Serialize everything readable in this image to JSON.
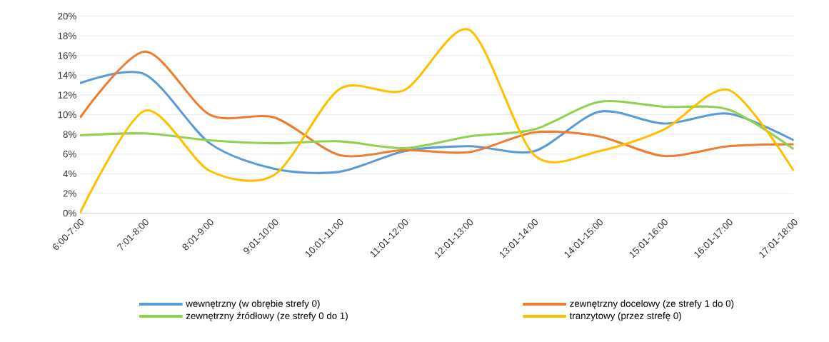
{
  "chart_data": {
    "type": "line",
    "categories": [
      "6:00-7:00",
      "7:01-8:00",
      "8:01-9:00",
      "9:01-10:00",
      "10:01-11:00",
      "11:01-12:00",
      "12:01-13:00",
      "13:01-14:00",
      "14:01-15:00",
      "15:01-16:00",
      "16:01-17:00",
      "17:01-18:00"
    ],
    "series": [
      {
        "name": "wewnętrzny (w obrębie strefy 0)",
        "color": "#5b9bd5",
        "values": [
          13.2,
          14.1,
          7.1,
          4.5,
          4.2,
          6.3,
          6.8,
          6.3,
          10.3,
          9.1,
          10.1,
          7.4
        ]
      },
      {
        "name": "zewnętrzny docelowy (ze strefy 1 do 0)",
        "color": "#ed7d31",
        "values": [
          9.7,
          16.4,
          10.0,
          9.7,
          5.9,
          6.4,
          6.2,
          8.2,
          7.8,
          5.8,
          6.8,
          7.0
        ]
      },
      {
        "name": "zewnętrzny źródłowy (ze strefy 0 do 1)",
        "color": "#92d050",
        "values": [
          7.9,
          8.1,
          7.4,
          7.1,
          7.3,
          6.6,
          7.8,
          8.5,
          11.3,
          10.8,
          10.5,
          6.5
        ]
      },
      {
        "name": "tranzytowy (przez strefę 0)",
        "color": "#ffc000",
        "values": [
          0,
          10.4,
          4.3,
          3.9,
          12.6,
          12.5,
          18.6,
          5.9,
          6.3,
          8.5,
          12.5,
          4.3
        ]
      }
    ],
    "ylim": [
      0,
      20
    ],
    "yticks": [
      {
        "value": 0,
        "label": "0%"
      },
      {
        "value": 2,
        "label": "2%"
      },
      {
        "value": 4,
        "label": "4%"
      },
      {
        "value": 6,
        "label": "6%"
      },
      {
        "value": 8,
        "label": "8%"
      },
      {
        "value": 10,
        "label": "10%"
      },
      {
        "value": 12,
        "label": "12%"
      },
      {
        "value": 14,
        "label": "14%"
      },
      {
        "value": 16,
        "label": "16%"
      },
      {
        "value": 18,
        "label": "18%"
      },
      {
        "value": 20,
        "label": "20%"
      }
    ],
    "grid": "y",
    "legend": "bottom",
    "marker": "none",
    "line_style": "solid"
  }
}
